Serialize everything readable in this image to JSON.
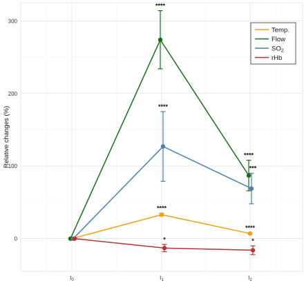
{
  "chart_data": {
    "type": "line",
    "title": "",
    "xlabel": "",
    "ylabel": "Relative changes (%)",
    "categories": [
      "t0",
      "t1",
      "t2"
    ],
    "category_labels": [
      {
        "base": "t",
        "sub": "0"
      },
      {
        "base": "t",
        "sub": "1"
      },
      {
        "base": "t",
        "sub": "2"
      }
    ],
    "ylim": [
      -45,
      325
    ],
    "yticks": [
      0,
      100,
      200,
      300
    ],
    "grid": true,
    "legend_position": "top-right",
    "series": [
      {
        "name": "Temp.",
        "legend_base": "Temp.",
        "legend_sub": "",
        "color": "#E8A317",
        "values": [
          0,
          33,
          7
        ],
        "error": [
          0,
          2,
          1
        ],
        "offset": 0,
        "significance": [
          "",
          "****",
          "****"
        ]
      },
      {
        "name": "Flow",
        "legend_base": "Flow",
        "legend_sub": "",
        "color": "#1B6B1B",
        "values": [
          0,
          274,
          87
        ],
        "error": [
          0,
          40,
          21
        ],
        "offset": -2,
        "significance": [
          "",
          "****",
          "****"
        ]
      },
      {
        "name": "SO2",
        "legend_base": "SO",
        "legend_sub": "2",
        "color": "#4A7FB0",
        "values": [
          0,
          127,
          69
        ],
        "error": [
          0,
          48,
          21
        ],
        "offset": 2,
        "significance": [
          "",
          "****",
          "***"
        ]
      },
      {
        "name": "rHb",
        "legend_base": "rHb",
        "legend_sub": "",
        "color": "#B83232",
        "values": [
          0,
          -13,
          -16
        ],
        "error": [
          0,
          5,
          6
        ],
        "offset": 4,
        "significance": [
          "",
          "*",
          "*"
        ]
      }
    ]
  }
}
